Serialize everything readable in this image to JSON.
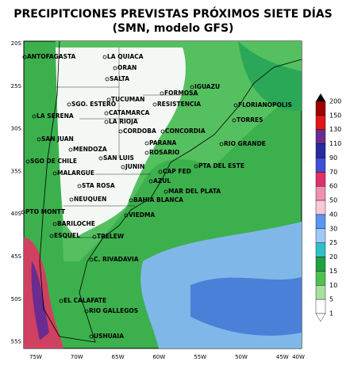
{
  "header": {
    "title": "PRECIPITCIONES PREVISTAS PRÓXIMOS SIETE DÍAS",
    "subtitle": "(SMN, modelo GFS)"
  },
  "map": {
    "lat_labels": [
      "20S",
      "25S",
      "30S",
      "35S",
      "40S",
      "45S",
      "50S",
      "55S"
    ],
    "lon_labels": [
      "75W",
      "70W",
      "65W",
      "60W",
      "55W",
      "50W",
      "45W",
      "40W"
    ],
    "cities": [
      "ANTOFAGASTA",
      "LA QUIACA",
      "ORAN",
      "SALTA",
      "IGUAZU",
      "FORMOSA",
      "TUCUMAN",
      "SGO. ESTERO",
      "RESISTENCIA",
      "FLORIANOPOLIS",
      "CATAMARCA",
      "LA RIOJA",
      "LA SERENA",
      "CORDOBA",
      "CONCORDIA",
      "TORRES",
      "SAN JUAN",
      "PARANA",
      "RIO GRANDE",
      "MENDOZA",
      "SAN LUIS",
      "ROSARIO",
      "SGO DE CHILE",
      "JUNIN",
      "CAP FED",
      "PTA DEL ESTE",
      "MALARGUE",
      "STA ROSA",
      "AZUL",
      "MAR DEL PLATA",
      "NEUQUEN",
      "BAHIA BLANCA",
      "PTO MONTT",
      "VIEDMA",
      "BARILOCHE",
      "ESQUEL",
      "TRELEW",
      "C. RIVADAVIA",
      "EL CALAFATE",
      "RIO GALLEGOS",
      "USHUAIA"
    ]
  },
  "colorbar": {
    "labels": [
      200,
      150,
      130,
      110,
      90,
      70,
      60,
      50,
      40,
      30,
      25,
      20,
      15,
      10,
      5,
      1
    ],
    "colors": [
      "#000000",
      "#a00000",
      "#e01818",
      "#6a2c90",
      "#2a2aa0",
      "#3c50d8",
      "#e0306a",
      "#f090b0",
      "#f8c8d8",
      "#5a96f0",
      "#a0c8f8",
      "#30c0c8",
      "#20a040",
      "#50c050",
      "#a8e0a0",
      "#ffffff"
    ]
  }
}
